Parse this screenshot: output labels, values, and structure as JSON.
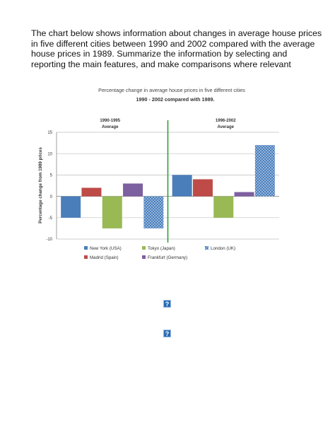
{
  "prompt": "The chart below shows information about changes in average house prices in five different cities between 1990 and 2002 compared with the average house prices in 1989. Summarize the information by selecting and reporting the main features, and make comparisons where relevant",
  "icons": [
    "question-icon",
    "question-icon"
  ],
  "chart_data": {
    "type": "bar",
    "title": "Percentage change in average house prices in five different cities",
    "subtitle": "1990 - 2002 compared with 1989.",
    "ylabel": "Percentage change from 1989 prices",
    "ylim": [
      -10,
      15
    ],
    "yticks": [
      -10,
      -5,
      0,
      5,
      10,
      15
    ],
    "grid": true,
    "legend_position": "bottom",
    "categories": [
      "1990-1995 Average",
      "1996-2002 Average"
    ],
    "category_lines": [
      [
        "1990-1995",
        "Average"
      ],
      [
        "1996-2002",
        "Average"
      ]
    ],
    "series": [
      {
        "name": "New York (USA)",
        "color": "#4a7ebb",
        "pattern": "solid",
        "values": [
          -5,
          5
        ]
      },
      {
        "name": "Madrid (Spain)",
        "color": "#be4b48",
        "pattern": "solid",
        "values": [
          2,
          4
        ]
      },
      {
        "name": "Tokyo (Japan)",
        "color": "#98b954",
        "pattern": "solid",
        "values": [
          -7.5,
          -5
        ]
      },
      {
        "name": "Frankfurt (Germany)",
        "color": "#7d60a0",
        "pattern": "solid",
        "values": [
          3,
          1
        ]
      },
      {
        "name": "London (UK)",
        "color": "#4a7ebb",
        "pattern": "dotted",
        "values": [
          -7.5,
          12
        ]
      }
    ],
    "colors": {
      "divider": "#2e9e3a",
      "grid": "#bfbfbf"
    }
  }
}
